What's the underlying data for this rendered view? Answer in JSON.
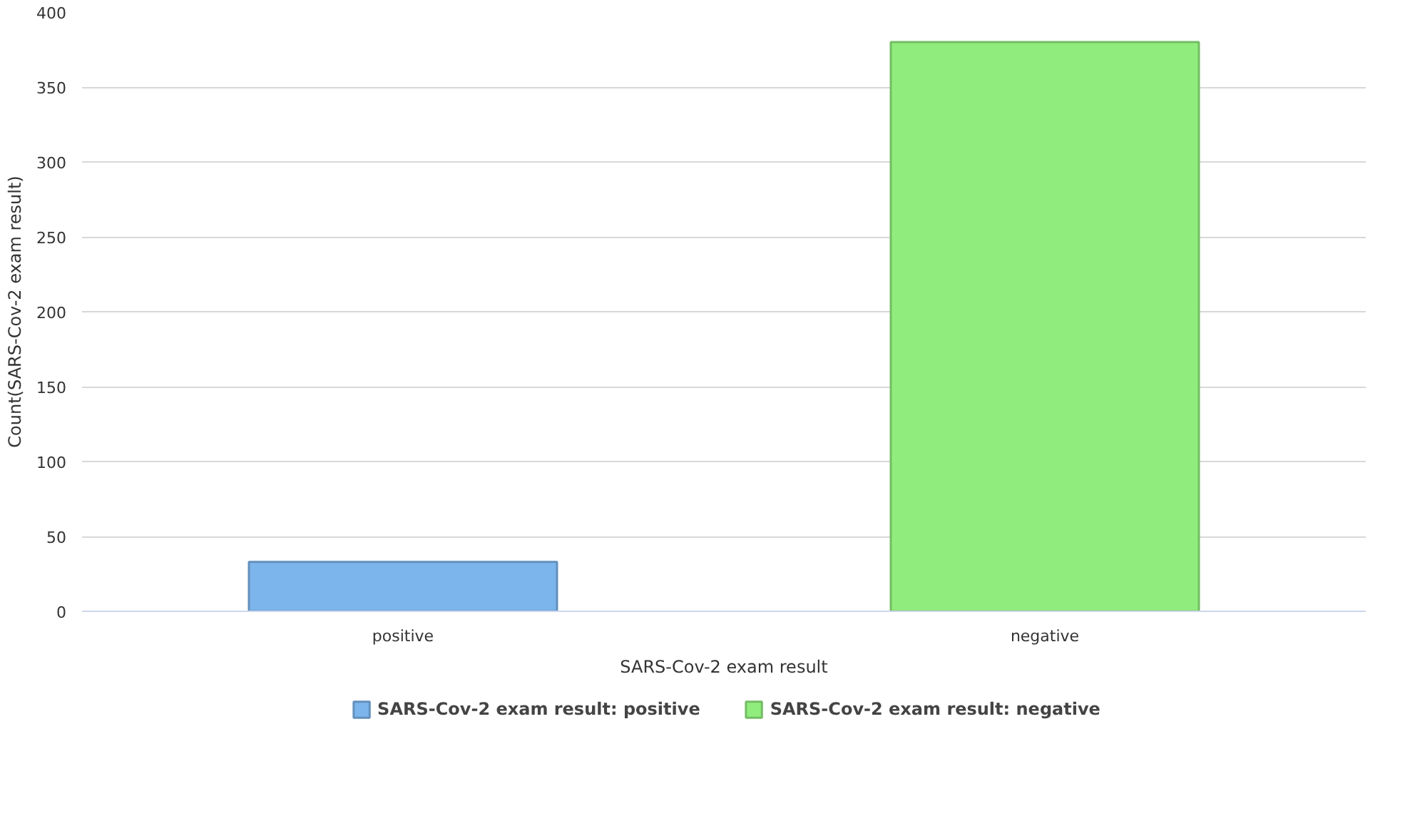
{
  "chart_data": {
    "type": "bar",
    "xlabel": "SARS-Cov-2 exam result",
    "ylabel": "Count(SARS-Cov-2 exam result)",
    "categories": [
      "positive",
      "negative"
    ],
    "series": [
      {
        "name": "SARS-Cov-2 exam result: positive",
        "color": "#7cb5ec",
        "values": [
          33,
          null
        ]
      },
      {
        "name": "SARS-Cov-2 exam result: negative",
        "color": "#90ed7d",
        "values": [
          null,
          380
        ]
      }
    ],
    "ylim": [
      0,
      400
    ],
    "yticks": [
      0,
      50,
      100,
      150,
      200,
      250,
      300,
      350,
      400
    ],
    "grid": "y",
    "legend": "bottom"
  }
}
